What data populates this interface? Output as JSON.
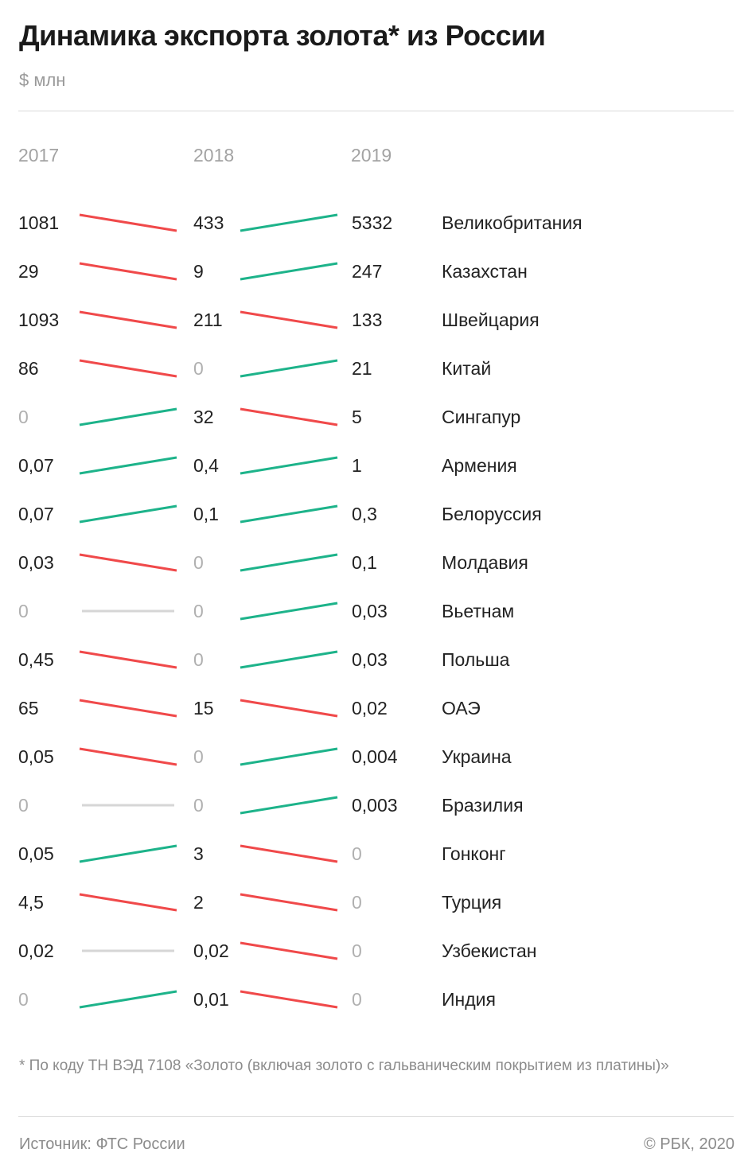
{
  "header": {
    "title": "Динамика экспорта золота* из России",
    "subtitle": "$ млн"
  },
  "footer": {
    "footnote": "* По коду ТН ВЭД 7108 «Золото (включая золото с гальваническим покрытием из платины)»",
    "source": "Источник: ФТС России",
    "credit": "© РБК, 2020"
  },
  "colors": {
    "up": "#1db38a",
    "down": "#f0494a",
    "flat": "#d6d6d6",
    "zero_text": "#b0b0b0"
  },
  "chart_data": {
    "type": "table",
    "subtype": "slope",
    "title": "Динамика экспорта золота* из России",
    "unit": "$ млн",
    "years": [
      "2017",
      "2018",
      "2019"
    ],
    "rows": [
      {
        "country": "Великобритания",
        "v2017": "1081",
        "v2018": "433",
        "v2019": "5332"
      },
      {
        "country": "Казахстан",
        "v2017": "29",
        "v2018": "9",
        "v2019": "247"
      },
      {
        "country": "Швейцария",
        "v2017": "1093",
        "v2018": "211",
        "v2019": "133"
      },
      {
        "country": "Китай",
        "v2017": "86",
        "v2018": "0",
        "v2019": "21"
      },
      {
        "country": "Сингапур",
        "v2017": "0",
        "v2018": "32",
        "v2019": "5"
      },
      {
        "country": "Армения",
        "v2017": "0,07",
        "v2018": "0,4",
        "v2019": "1"
      },
      {
        "country": "Белоруссия",
        "v2017": "0,07",
        "v2018": "0,1",
        "v2019": "0,3"
      },
      {
        "country": "Молдавия",
        "v2017": "0,03",
        "v2018": "0",
        "v2019": "0,1"
      },
      {
        "country": "Вьетнам",
        "v2017": "0",
        "v2018": "0",
        "v2019": "0,03"
      },
      {
        "country": "Польша",
        "v2017": "0,45",
        "v2018": "0",
        "v2019": "0,03"
      },
      {
        "country": "ОАЭ",
        "v2017": "65",
        "v2018": "15",
        "v2019": "0,02"
      },
      {
        "country": "Украина",
        "v2017": "0,05",
        "v2018": "0",
        "v2019": "0,004"
      },
      {
        "country": "Бразилия",
        "v2017": "0",
        "v2018": "0",
        "v2019": "0,003"
      },
      {
        "country": "Гонконг",
        "v2017": "0,05",
        "v2018": "3",
        "v2019": "0"
      },
      {
        "country": "Турция",
        "v2017": "4,5",
        "v2018": "2",
        "v2019": "0"
      },
      {
        "country": "Узбекистан",
        "v2017": "0,02",
        "v2018": "0,02",
        "v2019": "0"
      },
      {
        "country": "Индия",
        "v2017": "0",
        "v2018": "0,01",
        "v2019": "0"
      }
    ]
  }
}
